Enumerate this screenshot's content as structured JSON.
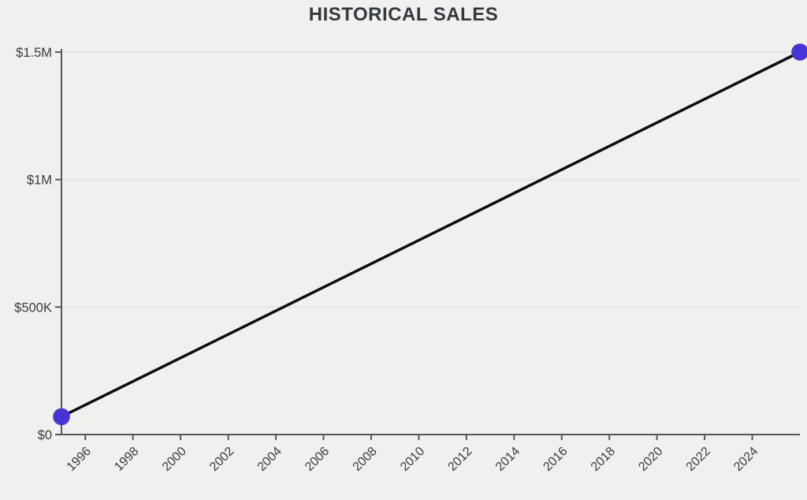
{
  "chart_data": {
    "type": "line",
    "title": "HISTORICAL SALES",
    "xlabel": "",
    "ylabel": "",
    "xlim": [
      1995,
      2026
    ],
    "ylim": [
      0,
      1500000
    ],
    "grid": "horizontal-only",
    "legend": "none",
    "x_tick_rotation_deg": -45,
    "x_ticks": [
      {
        "v": 1996,
        "label": "1996"
      },
      {
        "v": 1998,
        "label": "1998"
      },
      {
        "v": 2000,
        "label": "2000"
      },
      {
        "v": 2002,
        "label": "2002"
      },
      {
        "v": 2004,
        "label": "2004"
      },
      {
        "v": 2006,
        "label": "2006"
      },
      {
        "v": 2008,
        "label": "2008"
      },
      {
        "v": 2010,
        "label": "2010"
      },
      {
        "v": 2012,
        "label": "2012"
      },
      {
        "v": 2014,
        "label": "2014"
      },
      {
        "v": 2016,
        "label": "2016"
      },
      {
        "v": 2018,
        "label": "2018"
      },
      {
        "v": 2020,
        "label": "2020"
      },
      {
        "v": 2022,
        "label": "2022"
      },
      {
        "v": 2024,
        "label": "2024"
      }
    ],
    "y_ticks": [
      {
        "v": 0,
        "label": "$0"
      },
      {
        "v": 500000,
        "label": "$500K"
      },
      {
        "v": 1000000,
        "label": "$1M"
      },
      {
        "v": 1500000,
        "label": "$1.5M"
      }
    ],
    "series": [
      {
        "name": "Historical Sales",
        "points": [
          {
            "x": 1995,
            "y": 70000
          },
          {
            "x": 2026,
            "y": 1500000
          }
        ]
      }
    ],
    "colors": {
      "background": "#f0f0ee",
      "title_text": "#333940",
      "tick_text": "#3a3a3a",
      "axis": "#55585a",
      "grid": "#e3e3e1",
      "line": "#0d0d0d",
      "point": "#4634d6"
    }
  }
}
